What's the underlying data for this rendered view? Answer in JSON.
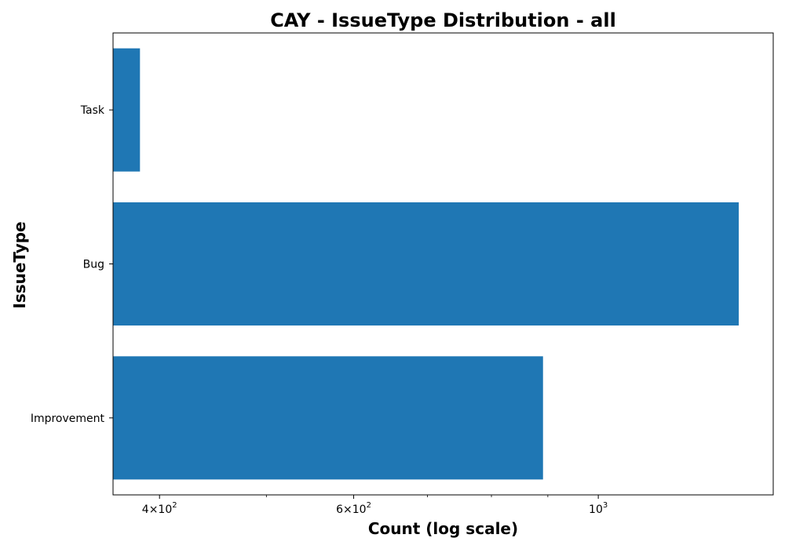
{
  "chart_data": {
    "type": "bar",
    "orientation": "horizontal",
    "title": "CAY - IssueType Distribution - all",
    "xlabel": "Count (log scale)",
    "ylabel": "IssueType",
    "x_scale": "log",
    "xlim": [
      363,
      1441
    ],
    "categories": [
      "Improvement",
      "Bug",
      "Task"
    ],
    "values": [
      891,
      1341,
      384
    ],
    "x_major_ticks": [
      {
        "value": 400,
        "mantissa": "4",
        "exponent": "2"
      },
      {
        "value": 600,
        "mantissa": "6",
        "exponent": "2"
      },
      {
        "value": 1000,
        "mantissa": "",
        "exponent": "3"
      }
    ],
    "x_minor_ticks": [
      500,
      700,
      800,
      900
    ],
    "bar_color": "#1f77b4",
    "grid": false,
    "legend": "none"
  }
}
